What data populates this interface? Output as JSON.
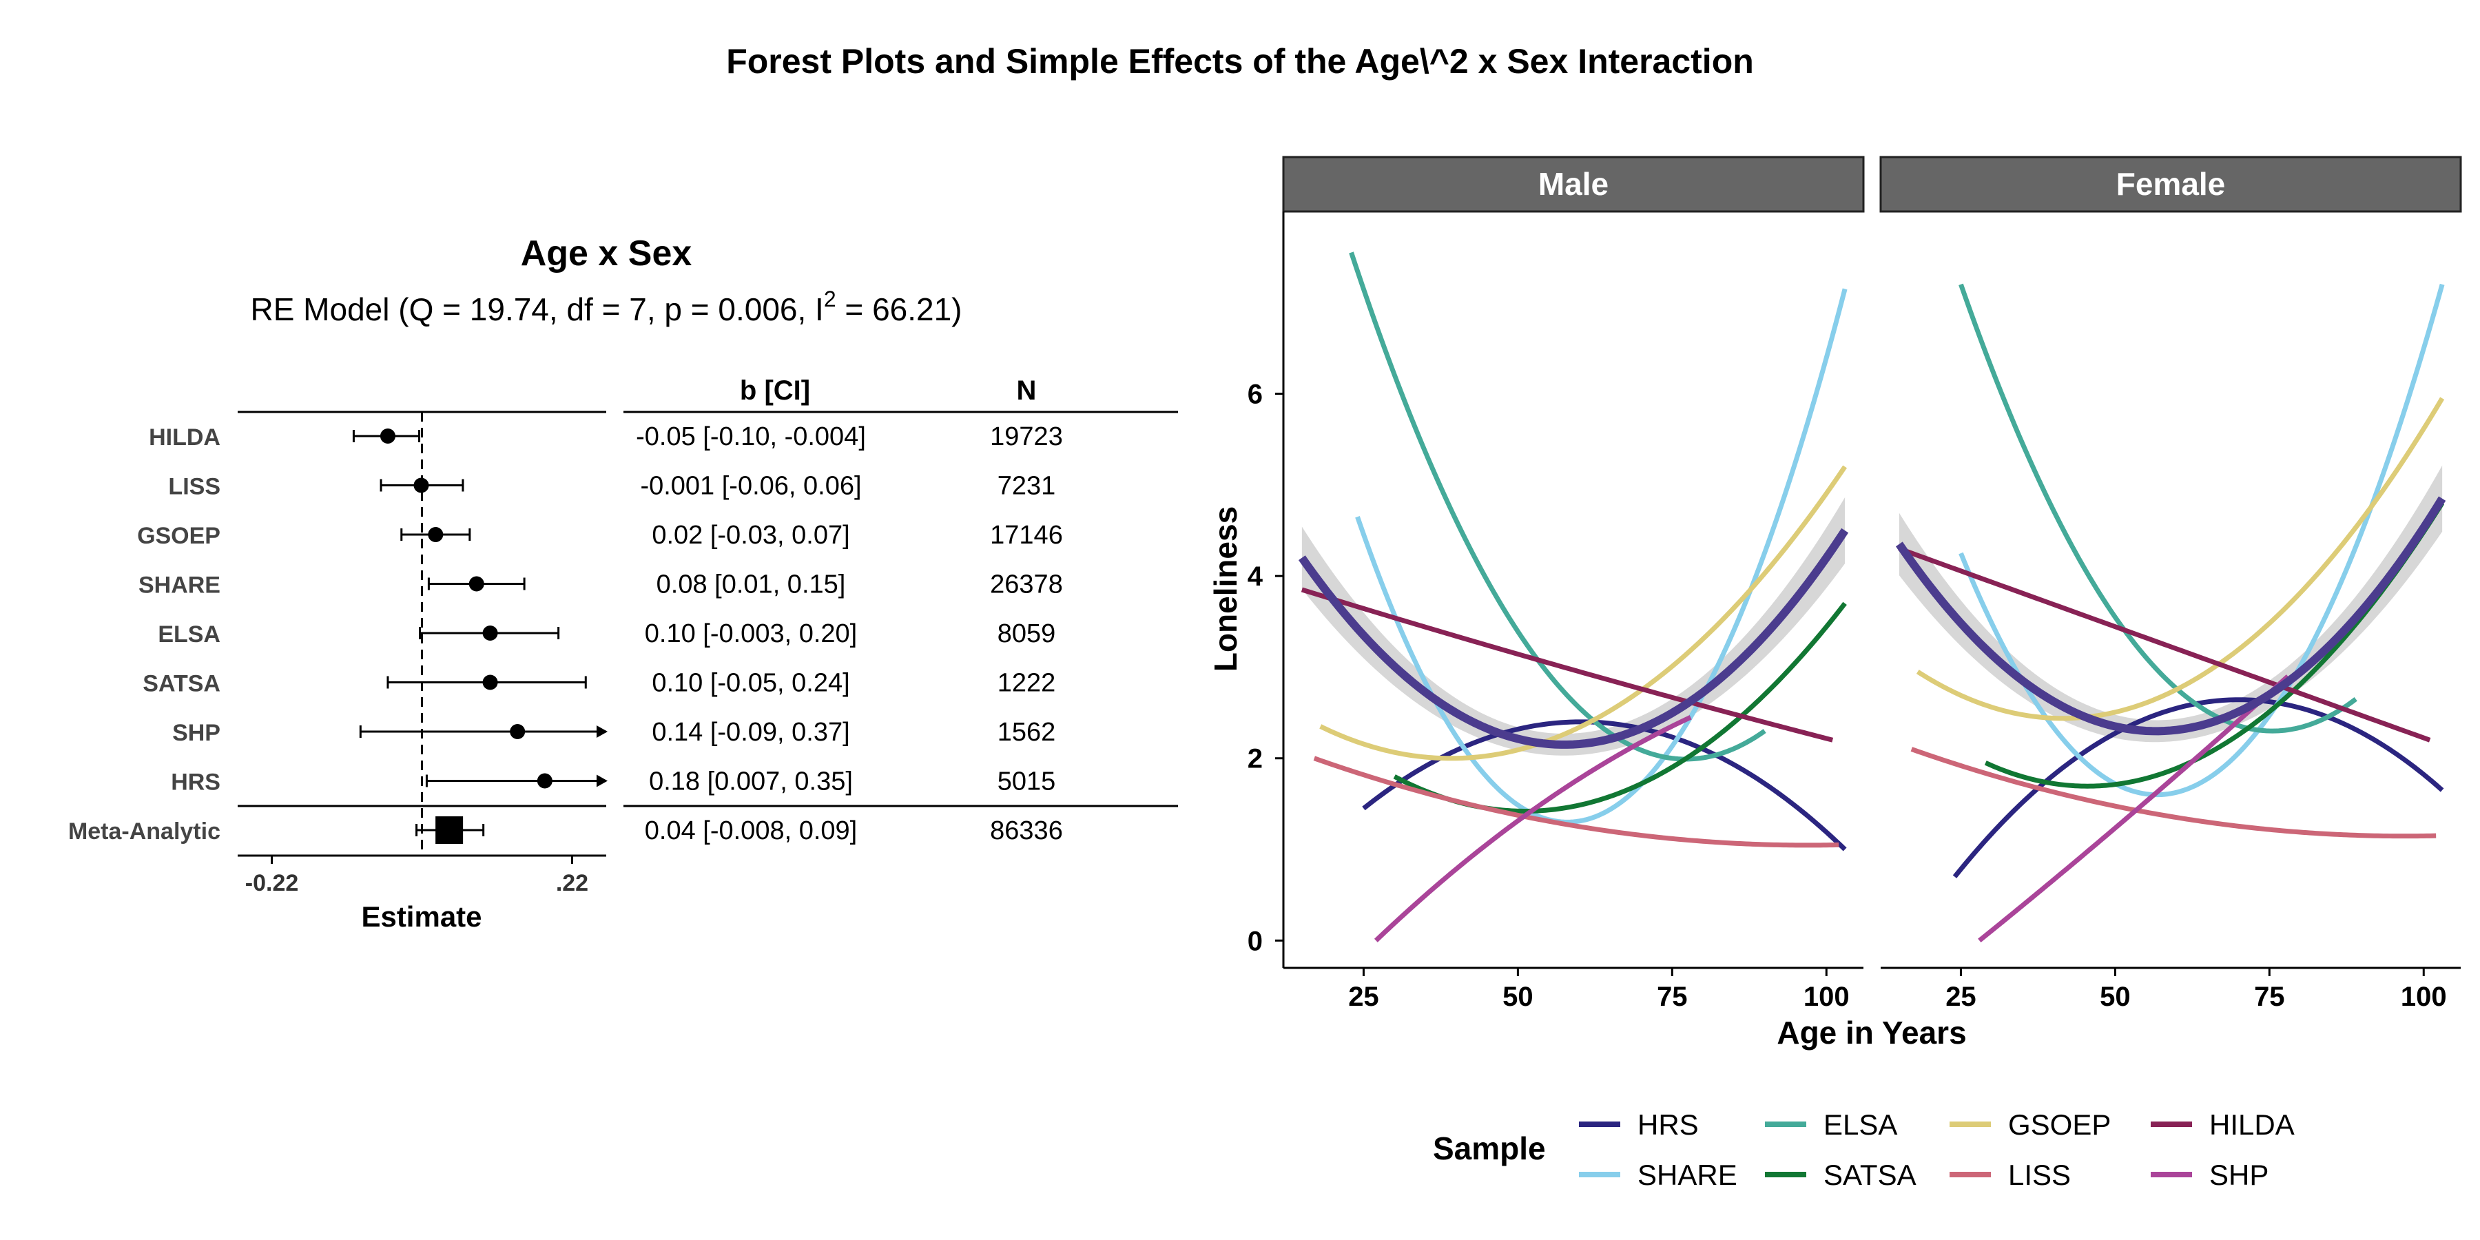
{
  "title": "Forest Plots and Simple Effects of the Age\\^2 x Sex Interaction",
  "chart_data": [
    {
      "type": "forest",
      "title": "Age x Sex",
      "subtitle_prefix": "RE Model (Q = 19.74, df = 7, p = 0.006, I",
      "subtitle_sup": "2",
      "subtitle_suffix": " = 66.21)",
      "xlabel": "Estimate",
      "x_ticks": [
        -0.22,
        0.22
      ],
      "x_tick_labels": [
        "-0.22",
        ".22"
      ],
      "xlim": [
        -0.27,
        0.27
      ],
      "col_headers": {
        "ci": "b [CI]",
        "n": "N"
      },
      "rows": [
        {
          "label": "HILDA",
          "est": -0.05,
          "lo": -0.1,
          "hi": -0.004,
          "ci_text": "-0.05 [-0.10, -0.004]",
          "n": "19723"
        },
        {
          "label": "LISS",
          "est": -0.001,
          "lo": -0.06,
          "hi": 0.06,
          "ci_text": "-0.001 [-0.06, 0.06]",
          "n": "7231"
        },
        {
          "label": "GSOEP",
          "est": 0.02,
          "lo": -0.03,
          "hi": 0.07,
          "ci_text": "0.02 [-0.03, 0.07]",
          "n": "17146"
        },
        {
          "label": "SHARE",
          "est": 0.08,
          "lo": 0.01,
          "hi": 0.15,
          "ci_text": "0.08 [0.01, 0.15]",
          "n": "26378"
        },
        {
          "label": "ELSA",
          "est": 0.1,
          "lo": -0.003,
          "hi": 0.2,
          "ci_text": "0.10 [-0.003, 0.20]",
          "n": "8059"
        },
        {
          "label": "SATSA",
          "est": 0.1,
          "lo": -0.05,
          "hi": 0.24,
          "ci_text": "0.10 [-0.05, 0.24]",
          "n": "1222"
        },
        {
          "label": "SHP",
          "est": 0.14,
          "lo": -0.09,
          "hi": 0.37,
          "ci_text": "0.14 [-0.09, 0.37]",
          "n": "1562"
        },
        {
          "label": "HRS",
          "est": 0.18,
          "lo": 0.007,
          "hi": 0.35,
          "ci_text": "0.18 [0.007, 0.35]",
          "n": "5015"
        }
      ],
      "meta": {
        "label": "Meta-Analytic",
        "est": 0.04,
        "lo": -0.008,
        "hi": 0.09,
        "ci_text": "0.04 [-0.008, 0.09]",
        "n": "86336"
      }
    },
    {
      "type": "line",
      "facets": [
        "Male",
        "Female"
      ],
      "xlabel": "Age in Years",
      "ylabel": "Loneliness",
      "xlim": [
        12,
        106
      ],
      "ylim": [
        -0.3,
        8.0
      ],
      "x_ticks": [
        25,
        50,
        75,
        100
      ],
      "y_ticks": [
        0,
        2,
        4,
        6
      ],
      "legend_title": "Sample",
      "legend_position": "bottom",
      "series": [
        {
          "name": "HRS",
          "color": "#2B2580",
          "Male": [
            [
              25,
              1.45
            ],
            [
              60,
              2.4
            ],
            [
              103,
              1.0
            ]
          ],
          "Female": [
            [
              24,
              0.7
            ],
            [
              60,
              2.55
            ],
            [
              103,
              1.65
            ]
          ]
        },
        {
          "name": "SHARE",
          "color": "#87CEEB",
          "Male": [
            [
              24,
              4.65
            ],
            [
              58,
              1.3
            ],
            [
              103,
              7.15
            ]
          ],
          "Female": [
            [
              25,
              4.25
            ],
            [
              57,
              1.6
            ],
            [
              103,
              7.2
            ]
          ]
        },
        {
          "name": "ELSA",
          "color": "#44AA99",
          "Male": [
            [
              23,
              7.55
            ],
            [
              75,
              2.0
            ],
            [
              90,
              2.3
            ]
          ],
          "Female": [
            [
              25,
              7.2
            ],
            [
              76,
              2.3
            ],
            [
              89,
              2.65
            ]
          ]
        },
        {
          "name": "SATSA",
          "color": "#117733",
          "Male": [
            [
              30,
              1.8
            ],
            [
              51,
              1.42
            ],
            [
              103,
              3.7
            ]
          ],
          "Female": [
            [
              29,
              1.95
            ],
            [
              48,
              1.7
            ],
            [
              103,
              4.8
            ]
          ]
        },
        {
          "name": "GSOEP",
          "color": "#DDCC77",
          "Male": [
            [
              18,
              2.35
            ],
            [
              40,
              2.0
            ],
            [
              103,
              5.2
            ]
          ],
          "Female": [
            [
              18,
              2.95
            ],
            [
              45,
              2.45
            ],
            [
              103,
              5.95
            ]
          ]
        },
        {
          "name": "LISS",
          "color": "#CC6677",
          "Male": [
            [
              17,
              2.0
            ],
            [
              60,
              1.25
            ],
            [
              102,
              1.05
            ]
          ],
          "Female": [
            [
              17,
              2.1
            ],
            [
              60,
              1.35
            ],
            [
              102,
              1.15
            ]
          ]
        },
        {
          "name": "HILDA",
          "color": "#882255",
          "Male": [
            [
              15,
              3.85
            ],
            [
              60,
              2.95
            ],
            [
              101,
              2.2
            ]
          ],
          "Female": [
            [
              15,
              4.3
            ],
            [
              60,
              3.2
            ],
            [
              101,
              2.2
            ]
          ]
        },
        {
          "name": "SHP",
          "color": "#AA4499",
          "Male": [
            [
              27,
              0.0
            ],
            [
              56,
              1.6
            ],
            [
              78,
              2.45
            ]
          ],
          "Female": [
            [
              28,
              0.0
            ],
            [
              52,
              1.35
            ],
            [
              78,
              2.9
            ]
          ]
        }
      ],
      "overall": {
        "color": "#4B3C8E",
        "band_color": "#D3D3D3",
        "Male": [
          [
            15,
            4.2
          ],
          [
            58,
            2.15
          ],
          [
            103,
            4.5
          ]
        ],
        "Female": [
          [
            15,
            4.35
          ],
          [
            58,
            2.3
          ],
          [
            103,
            4.85
          ]
        ]
      }
    }
  ]
}
